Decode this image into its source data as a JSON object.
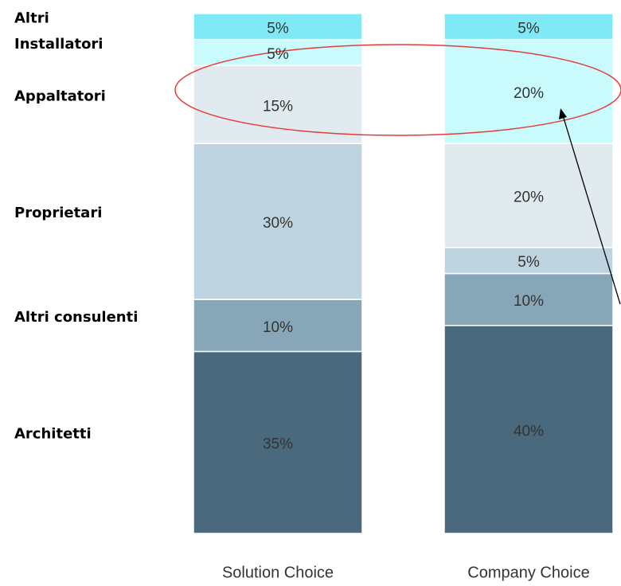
{
  "chart_data": {
    "type": "stacked_bar",
    "categories": [
      "Solution Choice",
      "Company Choice"
    ],
    "ylim": [
      0,
      100
    ],
    "series": [
      {
        "name": "Architetti",
        "color": "#4a697c",
        "values": [
          35,
          40
        ],
        "value_labels": [
          "35%",
          "40%"
        ]
      },
      {
        "name": "Altri consulenti",
        "color": "#87a7b9",
        "values": [
          10,
          10
        ],
        "value_labels": [
          "10%",
          "10%"
        ]
      },
      {
        "name": "Proprietari",
        "color": "#bdd4e0",
        "values": [
          30,
          5
        ],
        "value_labels": [
          "30%",
          "5%"
        ]
      },
      {
        "name": "Appaltatori",
        "color": "#e0eaef",
        "values": [
          15,
          20
        ],
        "value_labels": [
          "15%",
          "20%"
        ]
      },
      {
        "name": "Installatori",
        "color": "#c9fbfd",
        "values": [
          5,
          20
        ],
        "value_labels": [
          "5%",
          "20%"
        ]
      },
      {
        "name": "Altri",
        "color": "#7feaf5",
        "values": [
          5,
          5
        ],
        "value_labels": [
          "5%",
          "5%"
        ]
      }
    ]
  }
}
